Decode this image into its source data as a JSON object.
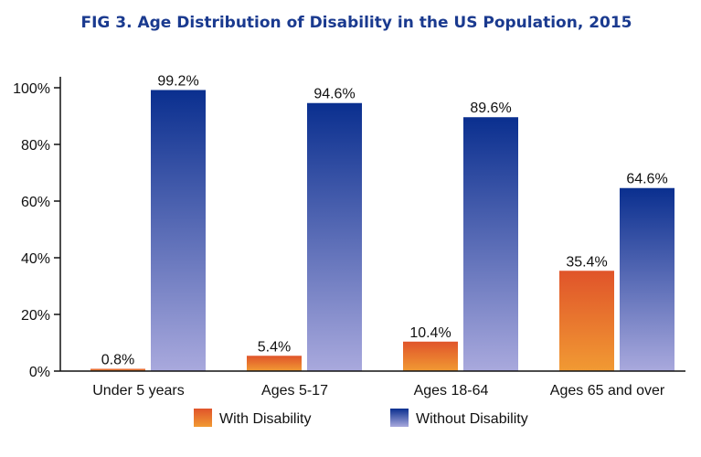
{
  "chart_data": {
    "type": "bar",
    "title": "FIG 3. Age Distribution of Disability in the US Population, 2015",
    "xlabel": "",
    "ylabel": "",
    "categories": [
      "Under 5 years",
      "Ages 5-17",
      "Ages 18-64",
      "Ages 65 and over"
    ],
    "series": [
      {
        "name": "With Disability",
        "values": [
          0.8,
          5.4,
          10.4,
          35.4
        ],
        "labels": [
          "0.8%",
          "5.4%",
          "10.4%",
          "35.4%"
        ],
        "color_top": "#e0542a",
        "color_bottom": "#f19a33"
      },
      {
        "name": "Without Disability",
        "values": [
          99.2,
          94.6,
          89.6,
          64.6
        ],
        "labels": [
          "99.2%",
          "94.6%",
          "89.6%",
          "64.6%"
        ],
        "color_top": "#0a2f8f",
        "color_bottom": "#a9a9dd"
      }
    ],
    "ylim": [
      0,
      100
    ],
    "yticks": [
      0,
      20,
      40,
      60,
      80,
      100
    ],
    "ytick_labels": [
      "0%",
      "20%",
      "40%",
      "60%",
      "80%",
      "100%"
    ],
    "legend_position": "bottom",
    "grid": false
  }
}
